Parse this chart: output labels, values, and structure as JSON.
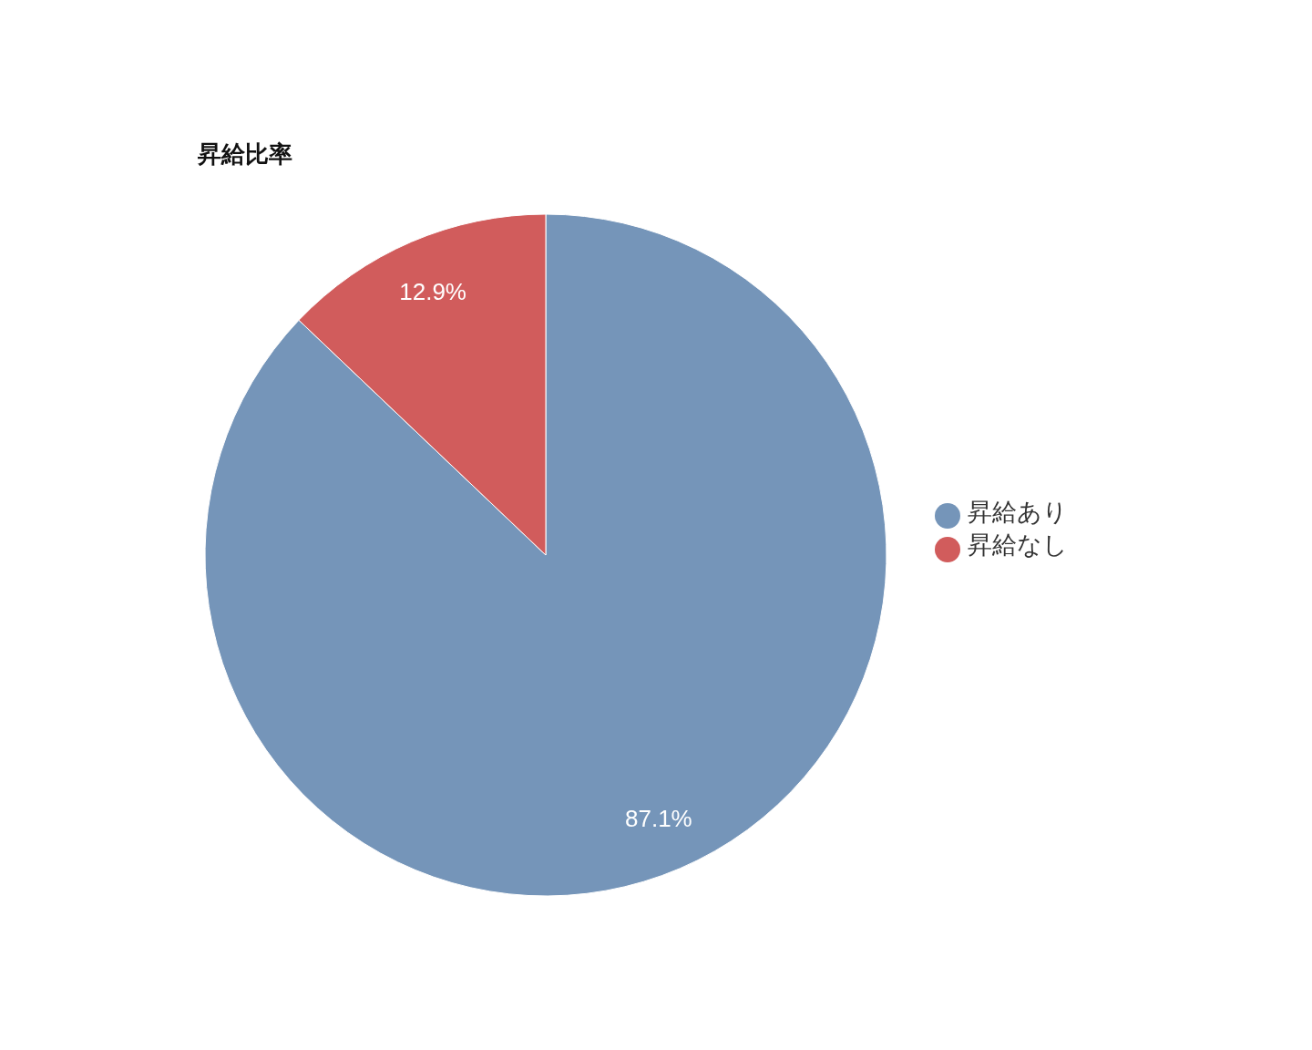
{
  "chart_data": {
    "type": "pie",
    "title": "昇給比率",
    "categories": [
      "昇給あり",
      "昇給なし"
    ],
    "values": [
      87.1,
      12.9
    ],
    "colors": [
      "#7595b9",
      "#d15c5c"
    ],
    "value_labels": [
      "87.1%",
      "12.9%"
    ],
    "legend": "right"
  }
}
